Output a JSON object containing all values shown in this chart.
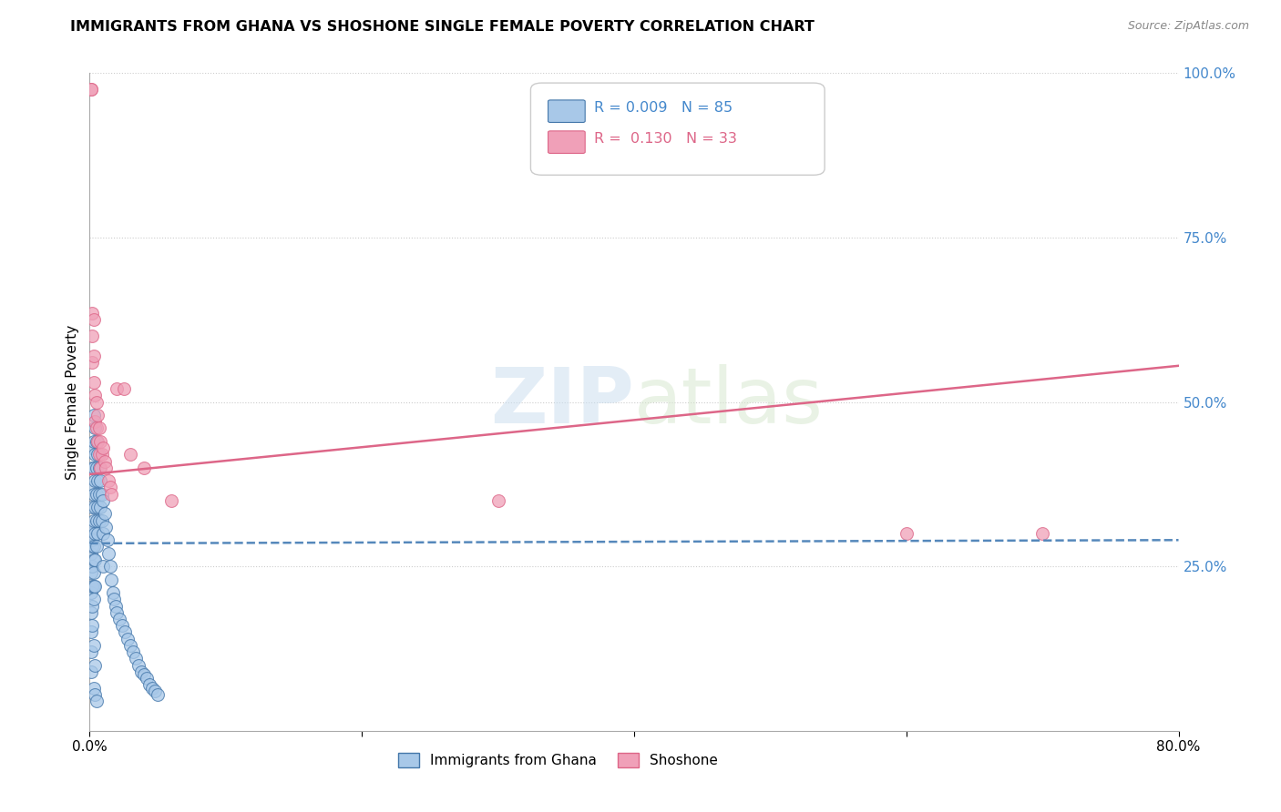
{
  "title": "IMMIGRANTS FROM GHANA VS SHOSHONE SINGLE FEMALE POVERTY CORRELATION CHART",
  "source": "Source: ZipAtlas.com",
  "ylabel": "Single Female Poverty",
  "x_min": 0.0,
  "x_max": 0.8,
  "y_min": 0.0,
  "y_max": 1.0,
  "legend_label1": "Immigrants from Ghana",
  "legend_label2": "Shoshone",
  "R1": "0.009",
  "N1": "85",
  "R2": "0.130",
  "N2": "33",
  "color_ghana": "#a8c8e8",
  "color_shoshone": "#f0a0b8",
  "color_ghana_line": "#4477aa",
  "color_shoshone_line": "#dd6688",
  "trend_ghana_color": "#5588bb",
  "trend_shoshone_color": "#dd6688",
  "ghana_trend_y0": 0.285,
  "ghana_trend_y1": 0.29,
  "shoshone_trend_y0": 0.39,
  "shoshone_trend_y1": 0.555,
  "ghana_x": [
    0.001,
    0.001,
    0.001,
    0.001,
    0.001,
    0.001,
    0.001,
    0.001,
    0.002,
    0.002,
    0.002,
    0.002,
    0.002,
    0.002,
    0.002,
    0.002,
    0.002,
    0.002,
    0.002,
    0.003,
    0.003,
    0.003,
    0.003,
    0.003,
    0.003,
    0.003,
    0.003,
    0.003,
    0.003,
    0.004,
    0.004,
    0.004,
    0.004,
    0.004,
    0.004,
    0.004,
    0.005,
    0.005,
    0.005,
    0.005,
    0.005,
    0.006,
    0.006,
    0.006,
    0.006,
    0.007,
    0.007,
    0.007,
    0.008,
    0.008,
    0.009,
    0.009,
    0.01,
    0.01,
    0.01,
    0.011,
    0.012,
    0.013,
    0.014,
    0.015,
    0.016,
    0.017,
    0.018,
    0.019,
    0.02,
    0.022,
    0.024,
    0.026,
    0.028,
    0.03,
    0.032,
    0.034,
    0.036,
    0.038,
    0.04,
    0.042,
    0.044,
    0.046,
    0.048,
    0.05,
    0.003,
    0.004,
    0.005,
    0.003,
    0.004
  ],
  "ghana_y": [
    0.3,
    0.27,
    0.24,
    0.21,
    0.18,
    0.15,
    0.12,
    0.09,
    0.43,
    0.4,
    0.37,
    0.34,
    0.31,
    0.28,
    0.25,
    0.22,
    0.19,
    0.16,
    0.29,
    0.48,
    0.44,
    0.4,
    0.36,
    0.32,
    0.28,
    0.26,
    0.24,
    0.22,
    0.2,
    0.46,
    0.42,
    0.38,
    0.34,
    0.3,
    0.26,
    0.22,
    0.44,
    0.4,
    0.36,
    0.32,
    0.28,
    0.42,
    0.38,
    0.34,
    0.3,
    0.4,
    0.36,
    0.32,
    0.38,
    0.34,
    0.36,
    0.32,
    0.35,
    0.3,
    0.25,
    0.33,
    0.31,
    0.29,
    0.27,
    0.25,
    0.23,
    0.21,
    0.2,
    0.19,
    0.18,
    0.17,
    0.16,
    0.15,
    0.14,
    0.13,
    0.12,
    0.11,
    0.1,
    0.09,
    0.085,
    0.08,
    0.07,
    0.065,
    0.06,
    0.055,
    0.065,
    0.055,
    0.045,
    0.13,
    0.1
  ],
  "shoshone_x": [
    0.001,
    0.001,
    0.002,
    0.002,
    0.002,
    0.003,
    0.003,
    0.003,
    0.004,
    0.004,
    0.005,
    0.005,
    0.006,
    0.006,
    0.007,
    0.007,
    0.008,
    0.008,
    0.009,
    0.01,
    0.011,
    0.012,
    0.014,
    0.015,
    0.016,
    0.02,
    0.025,
    0.03,
    0.04,
    0.06,
    0.3,
    0.6,
    0.7
  ],
  "shoshone_y": [
    0.975,
    0.975,
    0.635,
    0.6,
    0.56,
    0.625,
    0.57,
    0.53,
    0.51,
    0.47,
    0.5,
    0.46,
    0.48,
    0.44,
    0.46,
    0.42,
    0.44,
    0.4,
    0.42,
    0.43,
    0.41,
    0.4,
    0.38,
    0.37,
    0.36,
    0.52,
    0.52,
    0.42,
    0.4,
    0.35,
    0.35,
    0.3,
    0.3
  ]
}
